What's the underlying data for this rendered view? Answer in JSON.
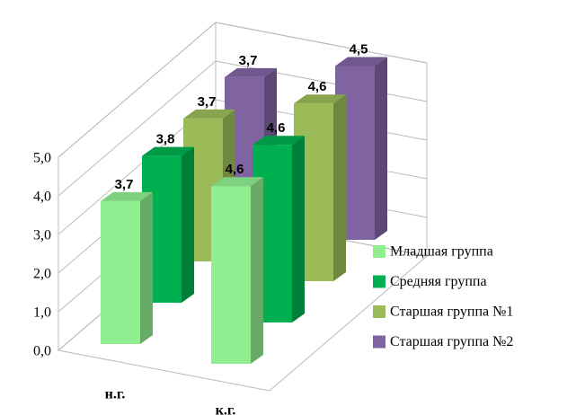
{
  "chart_data": {
    "type": "bar3d",
    "categories": [
      "н.г.",
      "к.г."
    ],
    "series": [
      {
        "name": "Младшая группа",
        "color": "#90ee90",
        "values": [
          3.7,
          4.6
        ],
        "value_labels": [
          "3,7",
          "4,6"
        ]
      },
      {
        "name": "Средняя группа",
        "color": "#00b050",
        "values": [
          3.8,
          4.6
        ],
        "value_labels": [
          "3,8",
          "4,6"
        ]
      },
      {
        "name": "Старшая группа №1",
        "color": "#9bbb59",
        "values": [
          3.7,
          4.6
        ],
        "value_labels": [
          "3,7",
          "4,6"
        ]
      },
      {
        "name": "Старшая группа №2",
        "color": "#8064a2",
        "values": [
          3.7,
          4.5
        ],
        "value_labels": [
          "3,7",
          "4,5"
        ]
      }
    ],
    "ylim": [
      0,
      5
    ],
    "yticks": [
      {
        "value": 0,
        "label": "0,0"
      },
      {
        "value": 1,
        "label": "1,0"
      },
      {
        "value": 2,
        "label": "2,0"
      },
      {
        "value": 3,
        "label": "3,0"
      },
      {
        "value": 4,
        "label": "4,0"
      },
      {
        "value": 5,
        "label": "5,0"
      }
    ],
    "grid": true,
    "legend": "right"
  }
}
